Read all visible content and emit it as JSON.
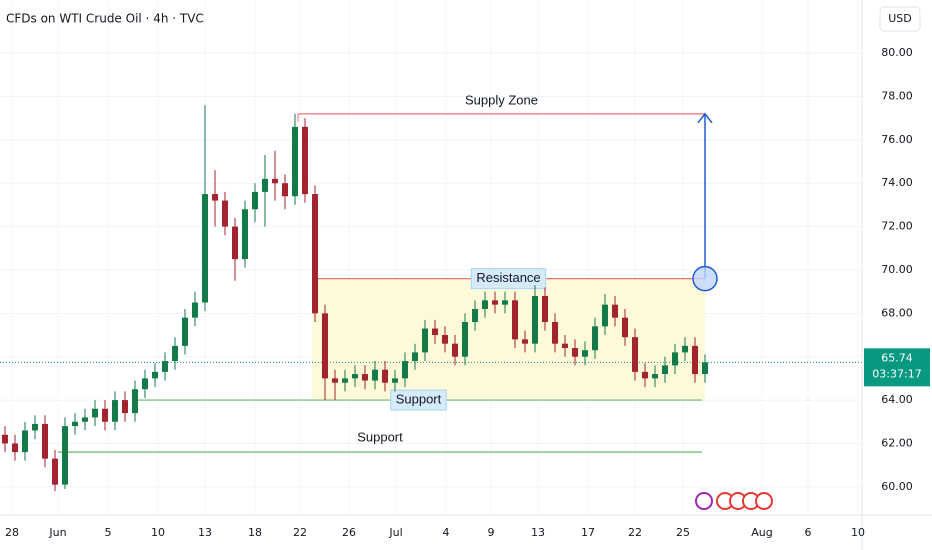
{
  "chart_data": {
    "type": "candlestick",
    "title": "CFDs on WTI Crude Oil · 4h · TVC",
    "currency": "USD",
    "xlim": [
      0,
      86.2
    ],
    "ylim": [
      58.7,
      82.45
    ],
    "grid": true,
    "up_color": "#157a4a",
    "down_color": "#a3232f",
    "xticks": [
      {
        "value": 1.2,
        "label": "28"
      },
      {
        "value": 5.8,
        "label": "Jun"
      },
      {
        "value": 10.8,
        "label": "5"
      },
      {
        "value": 15.8,
        "label": "10"
      },
      {
        "value": 20.5,
        "label": "13"
      },
      {
        "value": 25.5,
        "label": "18"
      },
      {
        "value": 30.0,
        "label": "22"
      },
      {
        "value": 34.9,
        "label": "26"
      },
      {
        "value": 39.6,
        "label": "Jul"
      },
      {
        "value": 44.6,
        "label": "4"
      },
      {
        "value": 49.1,
        "label": "9"
      },
      {
        "value": 53.8,
        "label": "13"
      },
      {
        "value": 58.8,
        "label": "17"
      },
      {
        "value": 63.5,
        "label": "22"
      },
      {
        "value": 68.3,
        "label": "25"
      },
      {
        "value": 76.2,
        "label": "Aug"
      },
      {
        "value": 80.8,
        "label": "6"
      },
      {
        "value": 85.8,
        "label": "10"
      }
    ],
    "yticks": [
      {
        "value": 60,
        "label": "60.00"
      },
      {
        "value": 62,
        "label": "62.00"
      },
      {
        "value": 64,
        "label": "64.00"
      },
      {
        "value": 66,
        "label": "66.00"
      },
      {
        "value": 68,
        "label": "68.00"
      },
      {
        "value": 70,
        "label": "70.00"
      },
      {
        "value": 72,
        "label": "72.00"
      },
      {
        "value": 74,
        "label": "74.00"
      },
      {
        "value": 76,
        "label": "76.00"
      },
      {
        "value": 78,
        "label": "78.00"
      },
      {
        "value": 80,
        "label": "80.00"
      }
    ],
    "x": [
      0.5,
      1.5,
      2.5,
      3.5,
      4.5,
      5.5,
      6.5,
      7.5,
      8.5,
      9.5,
      10.5,
      11.5,
      12.5,
      13.5,
      14.5,
      15.5,
      16.5,
      17.5,
      18.5,
      19.5,
      20.5,
      21.5,
      22.5,
      23.5,
      24.5,
      25.5,
      26.5,
      27.5,
      28.5,
      29.5,
      30.5,
      31.5,
      32.5,
      33.5,
      34.5,
      35.5,
      36.5,
      37.5,
      38.5,
      39.5,
      40.5,
      41.5,
      42.5,
      43.5,
      44.5,
      45.5,
      46.5,
      47.5,
      48.5,
      49.5,
      50.5,
      51.5,
      52.5,
      53.5,
      54.5,
      55.5,
      56.5,
      57.5,
      58.5,
      59.5,
      60.5,
      61.5,
      62.5,
      63.5,
      64.5,
      65.5,
      66.5,
      67.5,
      68.5,
      69.5,
      70.5
    ],
    "open": [
      62.4,
      62.0,
      61.6,
      62.6,
      62.9,
      61.3,
      60.1,
      62.8,
      63.0,
      63.2,
      63.6,
      63.0,
      64.0,
      63.4,
      64.5,
      65.0,
      65.3,
      65.8,
      66.5,
      67.8,
      68.5,
      73.5,
      73.2,
      72.0,
      70.5,
      72.8,
      73.6,
      74.2,
      74.0,
      73.4,
      76.6,
      73.5,
      68.0,
      65.0,
      64.8,
      65.0,
      65.2,
      64.9,
      65.4,
      64.8,
      65.0,
      65.8,
      66.2,
      67.3,
      67.0,
      66.6,
      66.0,
      67.6,
      68.2,
      68.6,
      68.4,
      68.6,
      66.8,
      66.6,
      68.8,
      67.6,
      66.6,
      66.4,
      66.0,
      66.3,
      67.4,
      68.4,
      67.8,
      66.9,
      65.3,
      65.0,
      65.2,
      65.6,
      66.2,
      66.5,
      65.2
    ],
    "high": [
      62.8,
      62.4,
      63.0,
      63.3,
      63.3,
      61.7,
      63.2,
      63.4,
      63.6,
      64.0,
      64.0,
      64.4,
      64.4,
      64.9,
      65.4,
      65.7,
      66.2,
      66.9,
      68.2,
      69.0,
      77.6,
      74.6,
      73.6,
      72.4,
      73.2,
      74.0,
      75.3,
      75.5,
      74.4,
      77.2,
      77.0,
      73.9,
      68.4,
      65.4,
      65.4,
      65.6,
      65.6,
      65.8,
      65.8,
      65.4,
      66.2,
      66.6,
      67.7,
      67.7,
      67.4,
      67.0,
      68.0,
      68.6,
      69.0,
      69.0,
      69.0,
      69.0,
      67.2,
      69.3,
      69.2,
      68.0,
      67.0,
      66.8,
      66.7,
      67.8,
      68.9,
      68.8,
      68.2,
      67.3,
      65.7,
      65.6,
      66.0,
      66.6,
      66.9,
      66.9,
      66.1
    ],
    "low": [
      61.6,
      61.2,
      61.2,
      62.2,
      60.9,
      59.8,
      59.9,
      62.4,
      62.6,
      62.8,
      62.6,
      62.6,
      63.0,
      63.0,
      64.1,
      64.6,
      64.9,
      65.4,
      66.1,
      67.4,
      68.1,
      72.0,
      71.6,
      69.5,
      70.1,
      72.2,
      72.0,
      73.2,
      72.8,
      73.0,
      73.1,
      67.6,
      64.0,
      64.0,
      64.4,
      64.6,
      64.5,
      64.5,
      64.4,
      64.4,
      64.6,
      65.4,
      65.8,
      66.6,
      66.2,
      65.6,
      65.6,
      67.2,
      67.8,
      68.0,
      68.0,
      66.4,
      66.2,
      66.2,
      67.2,
      66.2,
      66.0,
      65.6,
      65.6,
      65.9,
      67.0,
      67.4,
      66.5,
      64.9,
      64.6,
      64.6,
      64.8,
      65.2,
      65.8,
      64.8,
      64.8
    ],
    "close": [
      62.0,
      61.6,
      62.6,
      62.9,
      61.3,
      60.1,
      62.8,
      63.0,
      63.2,
      63.6,
      63.0,
      64.0,
      63.4,
      64.5,
      65.0,
      65.3,
      65.8,
      66.5,
      67.8,
      68.5,
      73.5,
      73.2,
      72.0,
      70.5,
      72.8,
      73.6,
      74.2,
      74.0,
      73.4,
      76.6,
      73.5,
      68.0,
      65.0,
      64.8,
      65.0,
      65.2,
      64.9,
      65.4,
      64.8,
      65.0,
      65.8,
      66.2,
      67.3,
      67.0,
      66.6,
      66.0,
      67.6,
      68.2,
      68.6,
      68.4,
      68.6,
      66.8,
      66.6,
      68.8,
      67.6,
      66.6,
      66.4,
      66.0,
      66.3,
      67.4,
      68.4,
      67.8,
      66.9,
      65.3,
      65.0,
      65.2,
      65.6,
      66.2,
      66.5,
      65.2,
      65.74
    ],
    "last_price": {
      "value": 65.74,
      "label": "65.74",
      "countdown": "03:37:17",
      "color": "#089981"
    },
    "zone": {
      "x": [
        31.2,
        70.5
      ],
      "low": 64.0,
      "high": 69.6,
      "color": "#fdf9d9"
    },
    "annotations": [
      {
        "label": "Supply Zone",
        "price": 77.2,
        "x": [
          29.8,
          70.5
        ],
        "color": "#e57373"
      },
      {
        "label": "Resistance",
        "price": 69.6,
        "x": [
          31.2,
          70.5
        ],
        "color": "#e57373",
        "boxed": true
      },
      {
        "label": "Support",
        "price": 64.0,
        "x": [
          13.5,
          70.2
        ],
        "color": "#66bb6a",
        "boxed": true
      },
      {
        "label": "Support",
        "price": 61.6,
        "x": [
          5.8,
          70.2
        ],
        "color": "#66bb6a"
      }
    ],
    "arrow": {
      "x": 70.5,
      "from": 69.6,
      "to": 77.2,
      "color": "#1e5bd8"
    }
  }
}
